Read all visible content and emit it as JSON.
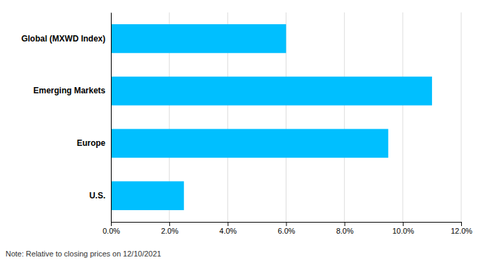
{
  "chart_data": {
    "type": "bar",
    "orientation": "horizontal",
    "categories": [
      "U.S.",
      "Europe",
      "Emerging Markets",
      "Global (MXWD Index)"
    ],
    "values": [
      0.025,
      0.095,
      0.11,
      0.06
    ],
    "color": "#00BFFF",
    "xlim": [
      0,
      0.12
    ],
    "xticks": [
      {
        "value": 0.0,
        "label": "0.0%"
      },
      {
        "value": 0.02,
        "label": "2.0%"
      },
      {
        "value": 0.04,
        "label": "4.0%"
      },
      {
        "value": 0.06,
        "label": "6.0%"
      },
      {
        "value": 0.08,
        "label": "8.0%"
      },
      {
        "value": 0.1,
        "label": "10.0%"
      },
      {
        "value": 0.12,
        "label": "12.0%"
      }
    ],
    "grid": true,
    "annotations": [
      "Note: Relative to closing prices on 12/10/2021"
    ]
  }
}
